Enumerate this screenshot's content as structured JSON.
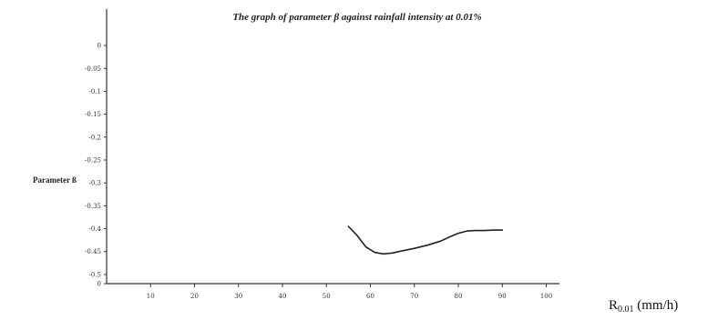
{
  "chart_data": {
    "type": "line",
    "title": "The graph of parameter β against rainfall intensity at 0.01%",
    "ylabel": "Parameter ß",
    "xlabel_main": "R",
    "xlabel_sub": "0.01",
    "xlabel_unit": " (mm/h)",
    "xlim": [
      0,
      103
    ],
    "ylim": [
      0.02,
      -0.52
    ],
    "xticks": [
      10,
      20,
      30,
      40,
      50,
      60,
      70,
      80,
      90,
      100
    ],
    "yticks": [
      0,
      -0.05,
      -0.1,
      -0.15,
      -0.2,
      -0.25,
      -0.3,
      -0.35,
      -0.4,
      -0.45,
      -0.5
    ],
    "ytick_labels": [
      "0",
      "-0.05",
      "-0.1",
      "-0.15",
      "-0.2",
      "-0.25",
      "-0.3",
      "-0.35",
      "-0.4",
      "-0.45",
      "-0.5"
    ],
    "baseline_label": "0",
    "grid": false,
    "series": [
      {
        "x": [
          55,
          57,
          59,
          61,
          63,
          65,
          67,
          70,
          73,
          76,
          78,
          80,
          82,
          84,
          86,
          88,
          90
        ],
        "y": [
          -0.395,
          -0.415,
          -0.44,
          -0.452,
          -0.455,
          -0.453,
          -0.449,
          -0.443,
          -0.436,
          -0.427,
          -0.418,
          -0.41,
          -0.405,
          -0.404,
          -0.404,
          -0.403,
          -0.403
        ],
        "color": "#222222"
      }
    ]
  }
}
